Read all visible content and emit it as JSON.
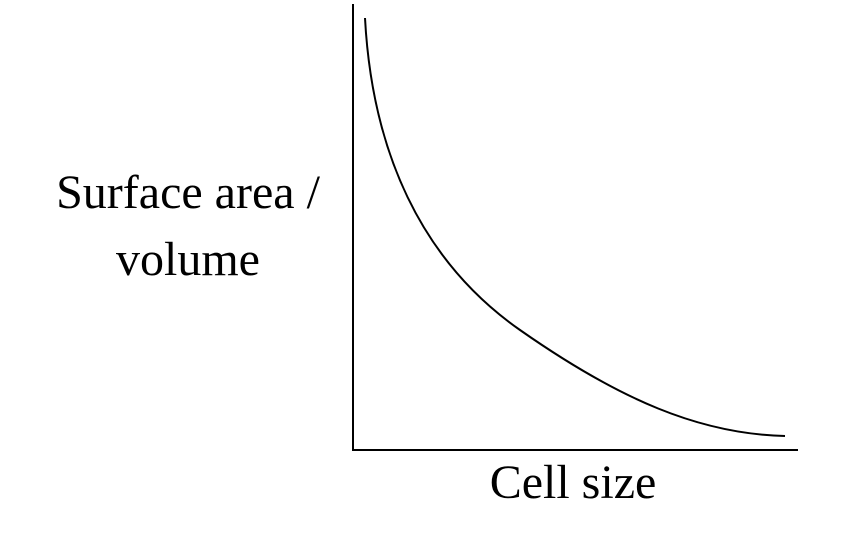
{
  "chart_data": {
    "type": "line",
    "y_label": [
      "Surface area /",
      "volume"
    ],
    "x_label": "Cell size"
  }
}
